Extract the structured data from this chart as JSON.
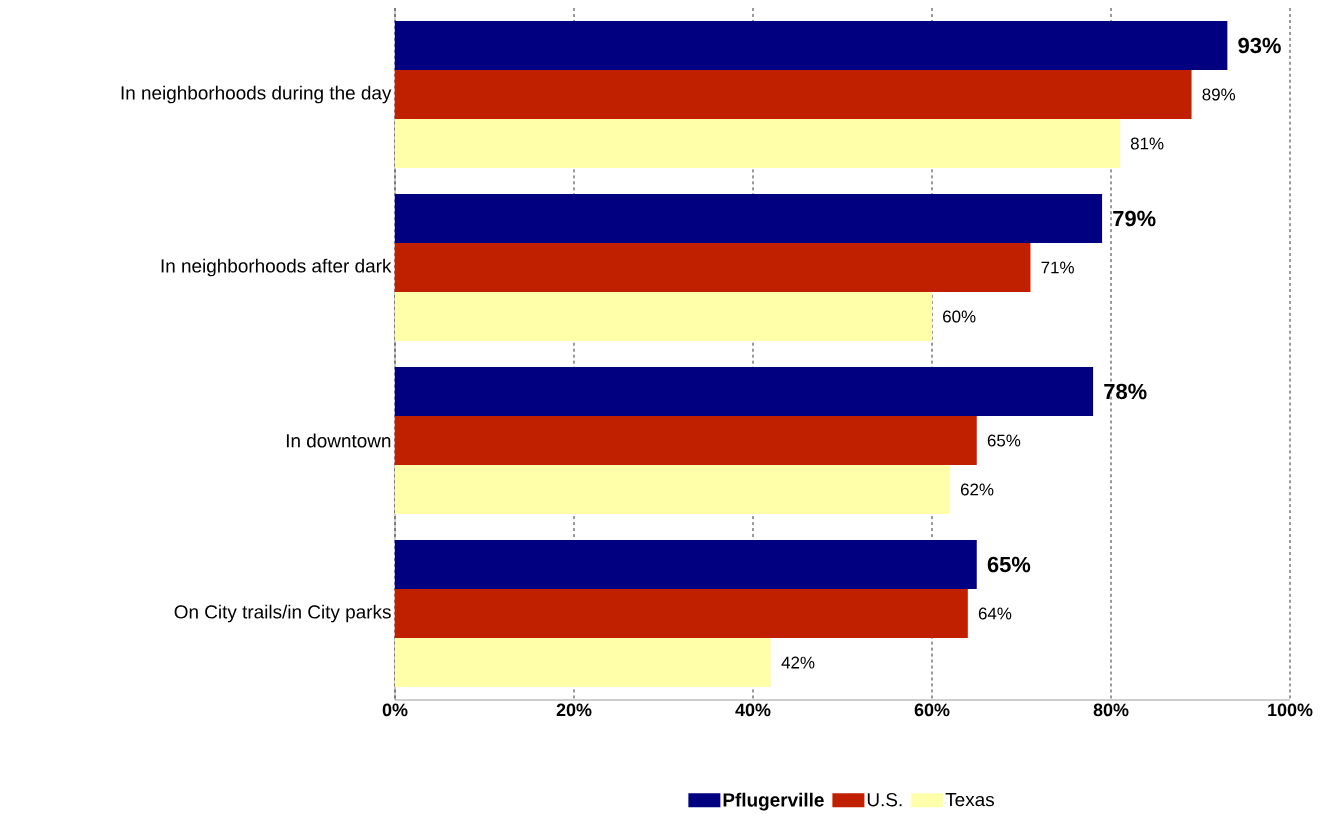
{
  "chart_data": {
    "type": "bar",
    "orientation": "horizontal",
    "categories": [
      "In neighborhoods during the day",
      "In neighborhoods after dark",
      "In downtown",
      "On City trails/in City parks"
    ],
    "series": [
      {
        "name": "Pflugerville",
        "color": "#000080",
        "values": [
          93,
          79,
          78,
          65
        ],
        "value_labels": [
          "93%",
          "79%",
          "78%",
          "65%"
        ]
      },
      {
        "name": "U.S.",
        "color": "#c02000",
        "values": [
          89,
          71,
          65,
          64
        ],
        "value_labels": [
          "89%",
          "71%",
          "65%",
          "64%"
        ]
      },
      {
        "name": "Texas",
        "color": "#ffffaa",
        "values": [
          81,
          60,
          62,
          42
        ],
        "value_labels": [
          "81%",
          "60%",
          "62%",
          "42%"
        ]
      }
    ],
    "xlim": [
      0,
      100
    ],
    "xticks": [
      {
        "value": 0,
        "label": "0%"
      },
      {
        "value": 20,
        "label": "20%"
      },
      {
        "value": 40,
        "label": "40%"
      },
      {
        "value": 60,
        "label": "60%"
      },
      {
        "value": 80,
        "label": "80%"
      },
      {
        "value": 100,
        "label": "100%"
      }
    ],
    "grid": "x",
    "legend": "bottom"
  }
}
